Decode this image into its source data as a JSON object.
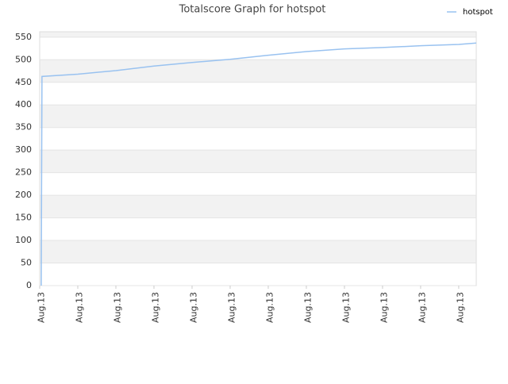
{
  "chart_data": {
    "type": "line",
    "title": "Totalscore Graph for hotspot",
    "x": [
      0.04,
      0.06,
      1,
      2,
      3,
      4,
      5,
      6,
      7,
      8,
      9,
      10,
      11,
      11.46
    ],
    "series": [
      {
        "name": "hotspot",
        "color": "#99c2f0",
        "values": [
          0,
          463,
          468,
          476,
          486,
          494,
          501,
          510,
          518,
          524,
          527,
          531,
          534,
          537
        ]
      }
    ],
    "xlim": [
      0,
      11.46
    ],
    "xticks": [
      {
        "value": 0,
        "label": "Aug.13"
      },
      {
        "value": 1,
        "label": "Aug.13"
      },
      {
        "value": 2,
        "label": "Aug.13"
      },
      {
        "value": 3,
        "label": "Aug.13"
      },
      {
        "value": 4,
        "label": "Aug.13"
      },
      {
        "value": 5,
        "label": "Aug.13"
      },
      {
        "value": 6,
        "label": "Aug.13"
      },
      {
        "value": 7,
        "label": "Aug.13"
      },
      {
        "value": 8,
        "label": "Aug.13"
      },
      {
        "value": 9,
        "label": "Aug.13"
      },
      {
        "value": 10,
        "label": "Aug.13"
      },
      {
        "value": 11,
        "label": "Aug.13"
      }
    ],
    "ylim": [
      0,
      562
    ],
    "yticks": [
      0,
      50,
      100,
      150,
      200,
      250,
      300,
      350,
      400,
      450,
      500,
      550
    ],
    "grid": "bands",
    "legend": "top-right"
  }
}
